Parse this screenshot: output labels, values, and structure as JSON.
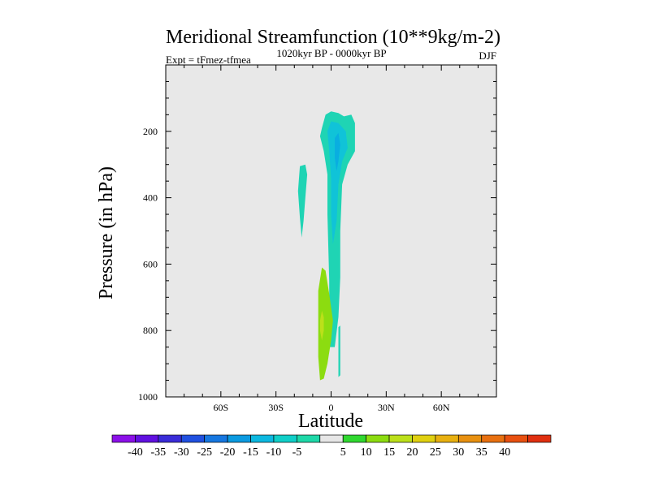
{
  "chart_data": {
    "type": "contour",
    "title": "Meridional Streamfunction (10**9kg/m-2)",
    "left_label": "Expt = tFmez-tfmea",
    "center_label": "1020kyr BP - 0000kyr BP",
    "right_label": "DJF",
    "xlabel": "Latitude",
    "ylabel": "Pressure (in hPa)",
    "xlim": [
      -90,
      90
    ],
    "ylim": [
      1000,
      0
    ],
    "x_ticks": [
      {
        "value": -60,
        "label": "60S"
      },
      {
        "value": -30,
        "label": "30S"
      },
      {
        "value": 0,
        "label": "0"
      },
      {
        "value": 30,
        "label": "30N"
      },
      {
        "value": 60,
        "label": "60N"
      }
    ],
    "y_ticks": [
      {
        "value": 200,
        "label": "200"
      },
      {
        "value": 400,
        "label": "400"
      },
      {
        "value": 600,
        "label": "600"
      },
      {
        "value": 800,
        "label": "800"
      },
      {
        "value": 1000,
        "label": "1000"
      }
    ],
    "background_color": "#e8e8e8",
    "contour_regions": [
      {
        "name": "north-tower-outer",
        "value": -10,
        "color": "#1fd4b4",
        "points": [
          [
            -5,
            190
          ],
          [
            -3,
            150
          ],
          [
            0,
            140
          ],
          [
            4,
            145
          ],
          [
            7,
            155
          ],
          [
            11,
            150
          ],
          [
            13,
            175
          ],
          [
            13,
            260
          ],
          [
            9,
            300
          ],
          [
            6,
            360
          ],
          [
            5,
            500
          ],
          [
            5,
            640
          ],
          [
            4,
            760
          ],
          [
            2,
            850
          ],
          [
            -1,
            850
          ],
          [
            -1,
            650
          ],
          [
            -2,
            450
          ],
          [
            -2,
            330
          ],
          [
            -4,
            260
          ],
          [
            -6,
            215
          ]
        ]
      },
      {
        "name": "north-tower-inner",
        "value": -15,
        "color": "#10c3d8",
        "points": [
          [
            -2,
            200
          ],
          [
            0,
            170
          ],
          [
            4,
            175
          ],
          [
            8,
            200
          ],
          [
            9,
            250
          ],
          [
            6,
            290
          ],
          [
            4,
            360
          ],
          [
            3,
            470
          ],
          [
            1,
            540
          ],
          [
            0,
            450
          ],
          [
            0,
            340
          ],
          [
            -1,
            260
          ]
        ]
      },
      {
        "name": "north-tower-core",
        "value": -20,
        "color": "#09aee0",
        "points": [
          [
            2,
            220
          ],
          [
            4,
            205
          ],
          [
            5,
            240
          ],
          [
            4,
            290
          ],
          [
            3,
            320
          ],
          [
            2,
            280
          ]
        ]
      },
      {
        "name": "west-sliver",
        "value": -10,
        "color": "#1fd4b4",
        "points": [
          [
            -17,
            305
          ],
          [
            -14,
            300
          ],
          [
            -13,
            330
          ],
          [
            -14,
            400
          ],
          [
            -15,
            470
          ],
          [
            -16,
            520
          ],
          [
            -17,
            460
          ],
          [
            -18,
            380
          ]
        ]
      },
      {
        "name": "lower-sliver",
        "value": -10,
        "color": "#1fd4b4",
        "points": [
          [
            4,
            790
          ],
          [
            5,
            785
          ],
          [
            5,
            860
          ],
          [
            5,
            935
          ],
          [
            4,
            940
          ],
          [
            4,
            860
          ]
        ]
      },
      {
        "name": "lower-cell-outer",
        "value": 10,
        "color": "#8cdc10",
        "points": [
          [
            -5,
            610
          ],
          [
            -3,
            620
          ],
          [
            -1,
            690
          ],
          [
            1,
            770
          ],
          [
            0,
            830
          ],
          [
            -2,
            900
          ],
          [
            -4,
            945
          ],
          [
            -6,
            950
          ],
          [
            -7,
            880
          ],
          [
            -7,
            760
          ],
          [
            -7,
            680
          ]
        ]
      },
      {
        "name": "lower-cell-inner",
        "value": 15,
        "color": "#bce01a",
        "points": [
          [
            -5,
            740
          ],
          [
            -4,
            760
          ],
          [
            -4,
            800
          ],
          [
            -5,
            830
          ],
          [
            -6,
            800
          ],
          [
            -6,
            770
          ]
        ]
      }
    ],
    "colorbar": {
      "labels": [
        "-40",
        "-35",
        "-30",
        "-25",
        "-20",
        "-15",
        "-10",
        "-5",
        "5",
        "10",
        "15",
        "20",
        "25",
        "30",
        "35",
        "40"
      ],
      "colors": [
        "#8b10e8",
        "#6010e0",
        "#3a2cd8",
        "#2050e0",
        "#1677e0",
        "#0b9ae0",
        "#0cb8e0",
        "#10cfc8",
        "#1ed8a8",
        "#e6e6e6",
        "#30d830",
        "#8cdc10",
        "#bce01a",
        "#e0d010",
        "#e8b010",
        "#e89010",
        "#e87010",
        "#e85010",
        "#e03010"
      ]
    }
  }
}
